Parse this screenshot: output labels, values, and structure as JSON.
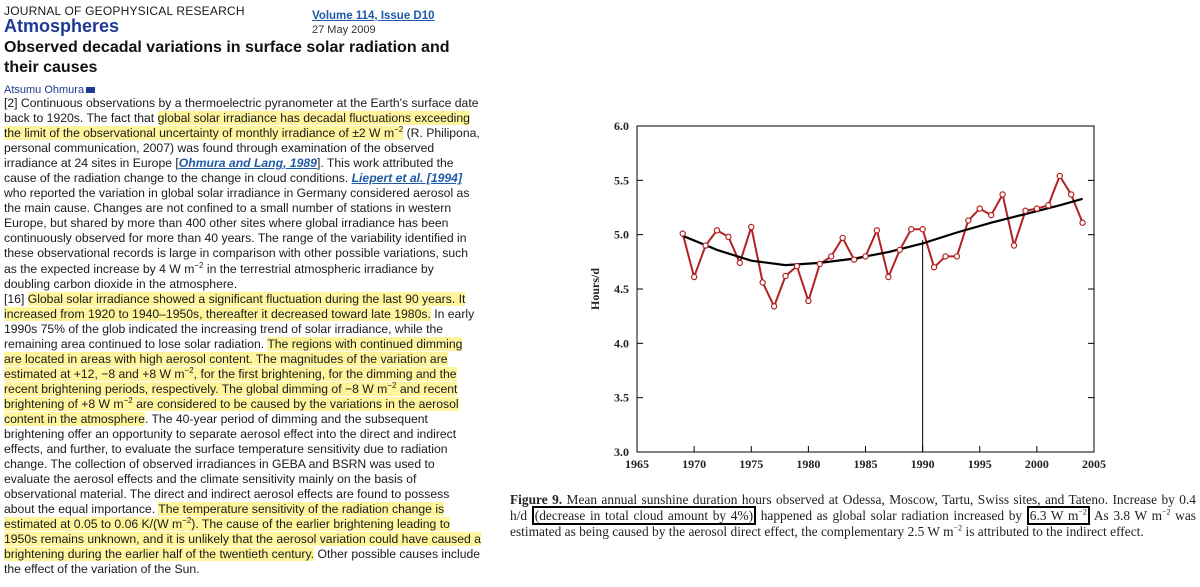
{
  "header": {
    "journal": "JOURNAL OF GEOPHYSICAL RESEARCH",
    "section": "Atmospheres",
    "volume_link": "Volume 114, Issue D10",
    "date": "27 May 2009",
    "title": "Observed decadal variations in surface solar radiation and their causes",
    "author": "Atsumu Ohmura"
  },
  "paragraph1": {
    "p_a": "[2] Continuous observations by a thermoelectric pyranometer at the Earth's surface date back to 1920s. The fact that ",
    "h_a": "global solar irradiance has decadal fluctuations exceeding the limit of the observational uncertainty of monthly irradiance of ±2 W m",
    "exp_a": "−2",
    "p_b": " (R. Philipona, personal communication, 2007) was found through examination of the observed irradiance at 24 sites in Europe [",
    "ref_a": "Ohmura and Lang",
    "ref_a_year": ", 1989",
    "p_c": "]. This work attributed the cause of the radiation change to the change in cloud conditions. ",
    "ref_b": "Liepert et al.",
    "ref_b_year": " [1994]",
    "p_d": " who reported the variation in global solar irradiance in Germany considered aerosol as the main cause. Changes are not confined to a small number of stations in western Europe, but shared by more than 400 other sites where global irradiance has been continuously observed for more than 40 years. The range of the variability identified in these observational records is large in comparison with other possible variations, such as the expected increase by 4 W m",
    "exp_b": "−2",
    "p_e": " in the terrestrial atmospheric irradiance by doubling carbon dioxide in the atmosphere."
  },
  "paragraph2": {
    "p_a": "[16] ",
    "h_a": "Global solar irradiance showed a significant fluctuation during the last 90 years. It increased from 1920 to 1940–1950s, thereafter it decreased toward late 1980s.",
    "p_b": " In early 1990s 75% of the glob indicated the increasing trend of solar irradiance, while the remaining area continued to lose solar radiation. ",
    "h_b": "The regions with continued dimming are located in areas with high aerosol content. The magnitudes of the variation are estimated at +12, −8 and +8 W m",
    "exp_b": "−2",
    "h_b2": ", for the first brightening, for the dimming and the recent brightening periods, respectively. The global dimming of −8 W m",
    "exp_c": "−2",
    "h_b3": " and recent brightening of +8 W m",
    "exp_d": "−2",
    "h_b4": " are considered to be caused by the variations in the aerosol content in the atmosphere",
    "p_c": ". The 40-year period of dimming and the subsequent brightening offer an opportunity to separate aerosol effect into the direct and indirect effects, and further, to evaluate the surface temperature sensitivity due to radiation change. The collection of observed irradiances in GEBA and BSRN was used to evaluate the aerosol effects and the climate sensitivity mainly on the basis of observational material. The direct and indirect aerosol effects are found to possess about the equal importance. ",
    "h_c": "The temperature sensitivity of the radiation change is estimated at 0.05 to 0.06 K/(W m",
    "exp_e": "−2",
    "h_c2": "). The cause of the earlier brightening leading to 1950s remains unknown, and it is unlikely that the aerosol variation could have caused a brightening during the earlier half of the twentieth century.",
    "p_d": " Other possible causes include the effect of the variation of the Sun."
  },
  "caption": {
    "label": "Figure 9.",
    "a": " Mean annual sunshine duration hours observed at Odessa, Moscow, Tartu, Swiss sites, and Tateno. Increase by 0.4 h/d ",
    "box_a": "(decrease in total cloud amount by 4%)",
    "b": " happened as global solar radiation increased by ",
    "box_b": "6.3 W m",
    "box_b_exp": "−2",
    "c": " As 3.8 W m",
    "c_exp": "−2",
    "d": " was estimated as being caused by the aerosol direct effect, the complementary 2.5 W m",
    "d_exp": "−2",
    "e": " is attributed to the indirect effect."
  },
  "chart_data": {
    "type": "line",
    "title": "",
    "xlabel": "",
    "ylabel": "Hours/d",
    "xlim": [
      1965,
      2005
    ],
    "ylim": [
      3.0,
      6.0
    ],
    "x_ticks": [
      1965,
      1970,
      1975,
      1980,
      1985,
      1990,
      1995,
      2000,
      2005
    ],
    "y_ticks": [
      "3.0",
      "3.5",
      "4.0",
      "4.5",
      "5.0",
      "5.5",
      "6.0"
    ],
    "reference_line_x": 1990,
    "series": [
      {
        "name": "",
        "color": "#b22222",
        "marker": "open-circle",
        "x": [
          1969,
          1970,
          1971,
          1972,
          1973,
          1974,
          1975,
          1976,
          1977,
          1978,
          1979,
          1980,
          1981,
          1982,
          1983,
          1984,
          1985,
          1986,
          1987,
          1988,
          1989,
          1990,
          1991,
          1992,
          1993,
          1994,
          1995,
          1996,
          1997,
          1998,
          1999,
          2000,
          2001,
          2002,
          2003,
          2004
        ],
        "y": [
          5.01,
          4.61,
          4.9,
          5.04,
          4.98,
          4.74,
          5.07,
          4.56,
          4.34,
          4.62,
          4.71,
          4.39,
          4.73,
          4.8,
          4.97,
          4.77,
          4.8,
          5.04,
          4.61,
          4.86,
          5.05,
          5.05,
          4.7,
          4.8,
          4.8,
          5.13,
          5.24,
          5.18,
          5.37,
          4.9,
          5.22,
          5.24,
          5.27,
          5.54,
          5.37,
          5.11
        ]
      },
      {
        "name": "",
        "color": "#000000",
        "marker": "none",
        "x": [
          1969,
          1972,
          1975,
          1978,
          1981,
          1984,
          1987,
          1990,
          1993,
          1996,
          1999,
          2002,
          2004
        ],
        "y": [
          4.99,
          4.86,
          4.76,
          4.72,
          4.74,
          4.78,
          4.84,
          4.92,
          5.02,
          5.11,
          5.19,
          5.27,
          5.33
        ]
      }
    ]
  }
}
